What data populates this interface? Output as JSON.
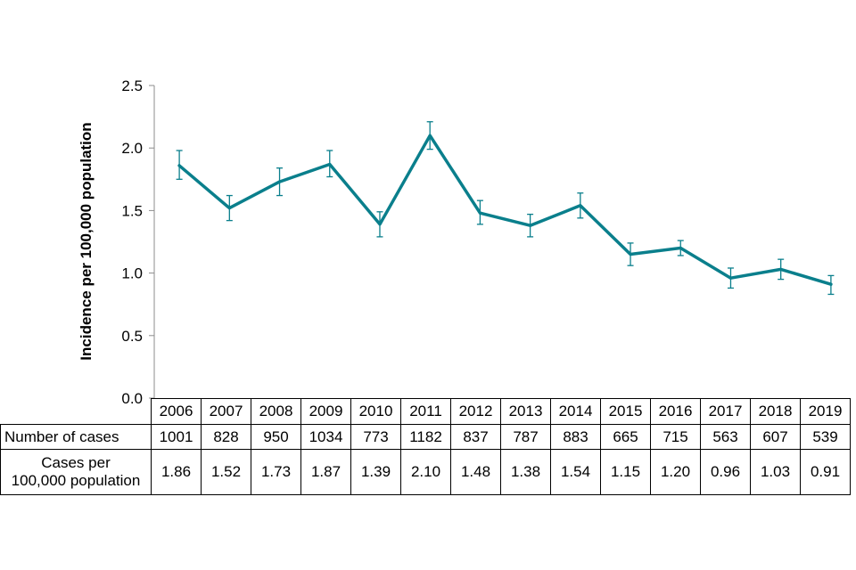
{
  "chart_data": {
    "type": "line",
    "ylabel": "Incidence per 100,000 population",
    "ylim": [
      0,
      2.5
    ],
    "yticks": [
      "0.0",
      "0.5",
      "1.0",
      "1.5",
      "2.0",
      "2.5"
    ],
    "categories": [
      "2006",
      "2007",
      "2008",
      "2009",
      "2010",
      "2011",
      "2012",
      "2013",
      "2014",
      "2015",
      "2016",
      "2017",
      "2018",
      "2019"
    ],
    "series": [
      {
        "values": [
          1.86,
          1.52,
          1.73,
          1.87,
          1.39,
          2.1,
          1.48,
          1.38,
          1.54,
          1.15,
          1.2,
          0.96,
          1.03,
          0.91
        ],
        "err_low": [
          1.75,
          1.42,
          1.62,
          1.77,
          1.29,
          1.99,
          1.39,
          1.29,
          1.44,
          1.06,
          1.14,
          0.88,
          0.95,
          0.83
        ],
        "err_high": [
          1.98,
          1.62,
          1.84,
          1.98,
          1.49,
          2.21,
          1.58,
          1.47,
          1.64,
          1.24,
          1.26,
          1.04,
          1.11,
          0.98
        ]
      }
    ],
    "color": "#0a7f8c",
    "grid": false
  },
  "table": {
    "rows": [
      {
        "label": "Number of cases",
        "values": [
          "1001",
          "828",
          "950",
          "1034",
          "773",
          "1182",
          "837",
          "787",
          "883",
          "665",
          "715",
          "563",
          "607",
          "539"
        ]
      },
      {
        "label_line1": "Cases per",
        "label_line2": "100,000 population",
        "values": [
          "1.86",
          "1.52",
          "1.73",
          "1.87",
          "1.39",
          "2.10",
          "1.48",
          "1.38",
          "1.54",
          "1.15",
          "1.20",
          "0.96",
          "1.03",
          "0.91"
        ]
      }
    ]
  }
}
